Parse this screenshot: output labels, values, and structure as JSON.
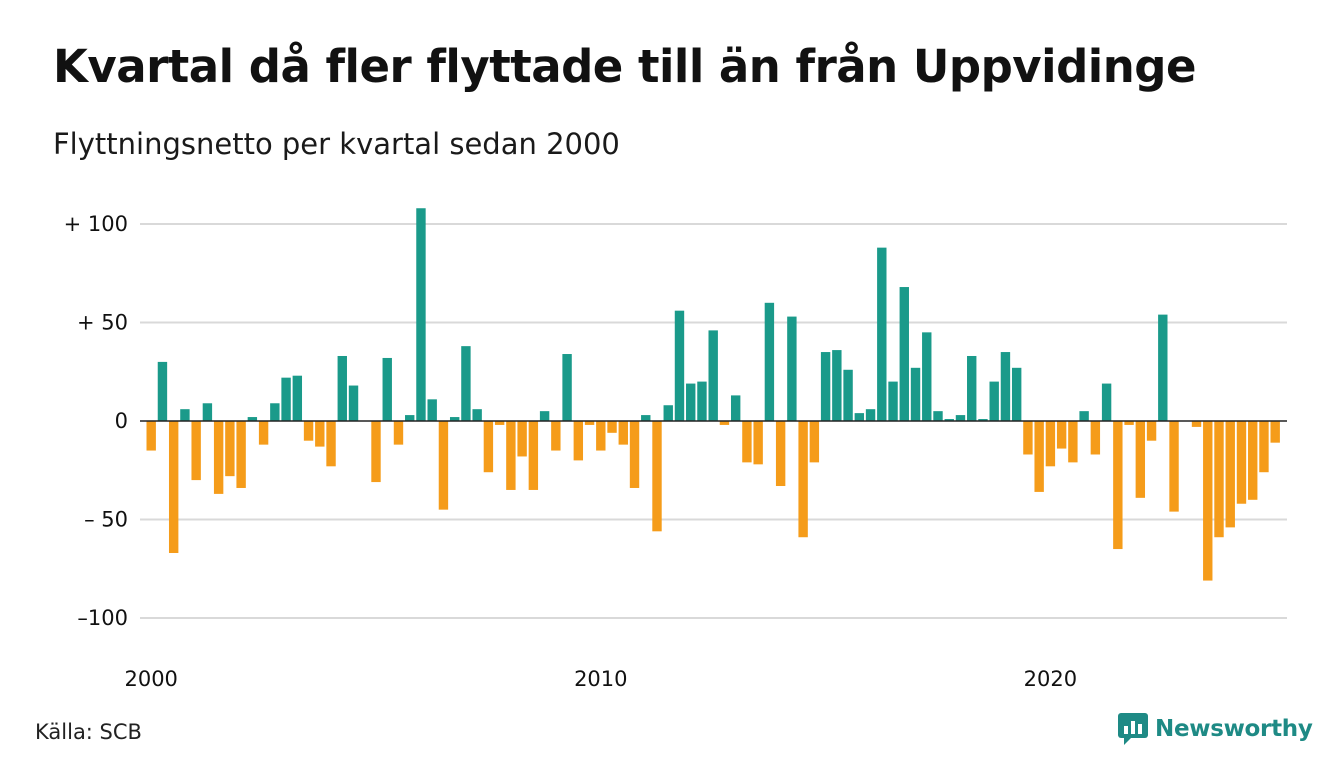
{
  "title": "Kvartal då fler flyttade till än från Uppvidinge",
  "subtitle": "Flyttningsnetto per kvartal sedan 2000",
  "source": "Källa: SCB",
  "brand": {
    "name": "Newsworthy",
    "icon": "newsworthy-logo-icon"
  },
  "colors": {
    "positive": "#1a9a8a",
    "negative": "#f59c1a",
    "grid": "#d9d9d9",
    "zero_line": "#222222"
  },
  "chart_data": {
    "type": "bar",
    "title": "Kvartal då fler flyttade till än från Uppvidinge",
    "subtitle": "Flyttningsnetto per kvartal sedan 2000",
    "ylim": [
      -100,
      110
    ],
    "yticks": [
      {
        "value": 100,
        "label": "+ 100"
      },
      {
        "value": 50,
        "label": "+  50"
      },
      {
        "value": 0,
        "label": "0"
      },
      {
        "value": -50,
        "label": "– 50"
      },
      {
        "value": -100,
        "label": "–100"
      }
    ],
    "xticks": [
      {
        "year": 2000,
        "label": "2000"
      },
      {
        "year": 2010,
        "label": "2010"
      },
      {
        "year": 2020,
        "label": "2020"
      }
    ],
    "grid": true,
    "start": {
      "year": 2000,
      "quarter": 1
    },
    "values": [
      -15,
      30,
      -67,
      6,
      -30,
      9,
      -37,
      -28,
      -34,
      2,
      -12,
      9,
      22,
      23,
      -10,
      -13,
      -23,
      33,
      18,
      0,
      -31,
      32,
      -12,
      3,
      108,
      11,
      -45,
      2,
      38,
      6,
      -26,
      -2,
      -35,
      -18,
      -35,
      5,
      -15,
      34,
      -20,
      -2,
      -15,
      -6,
      -12,
      -34,
      3,
      -56,
      8,
      56,
      19,
      20,
      46,
      -2,
      13,
      -21,
      -22,
      60,
      -33,
      53,
      -59,
      -21,
      35,
      36,
      26,
      4,
      6,
      88,
      20,
      68,
      27,
      45,
      5,
      1,
      3,
      33,
      1,
      20,
      35,
      27,
      -17,
      -36,
      -23,
      -14,
      -21,
      5,
      -17,
      19,
      -65,
      -2,
      -39,
      -10,
      54,
      -46,
      0,
      -3,
      -81,
      -59,
      -54,
      -42,
      -40,
      -26,
      -11
    ]
  }
}
